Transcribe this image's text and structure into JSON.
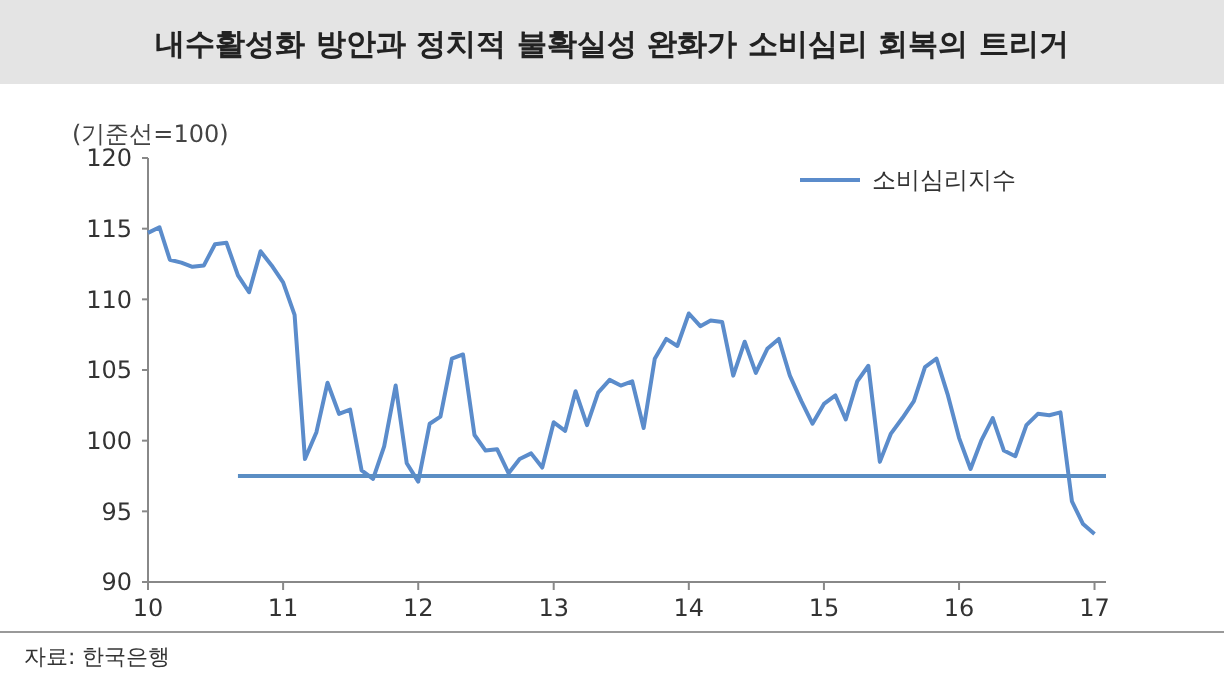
{
  "chart_data": {
    "type": "line",
    "title": "내수활성화 방안과 정치적 불확실성 완화가 소비심리 회복의 트리거",
    "ylabel": "(기준선=100)",
    "annotations": [
      "자료: 한국은행"
    ],
    "x": [
      "2010-01",
      "2010-02",
      "2010-03",
      "2010-04",
      "2010-05",
      "2010-06",
      "2010-07",
      "2010-08",
      "2010-09",
      "2010-10",
      "2010-11",
      "2010-12",
      "2011-01",
      "2011-02",
      "2011-03",
      "2011-04",
      "2011-05",
      "2011-06",
      "2011-07",
      "2011-08",
      "2011-09",
      "2011-10",
      "2011-11",
      "2011-12",
      "2012-01",
      "2012-02",
      "2012-03",
      "2012-04",
      "2012-05",
      "2012-06",
      "2012-07",
      "2012-08",
      "2012-09",
      "2012-10",
      "2012-11",
      "2012-12",
      "2013-01",
      "2013-02",
      "2013-03",
      "2013-04",
      "2013-05",
      "2013-06",
      "2013-07",
      "2013-08",
      "2013-09",
      "2013-10",
      "2013-11",
      "2013-12",
      "2014-01",
      "2014-02",
      "2014-03",
      "2014-04",
      "2014-05",
      "2014-06",
      "2014-07",
      "2014-08",
      "2014-09",
      "2014-10",
      "2014-11",
      "2014-12",
      "2015-01",
      "2015-02",
      "2015-03",
      "2015-04",
      "2015-05",
      "2015-06",
      "2015-07",
      "2015-08",
      "2015-09",
      "2015-10",
      "2015-11",
      "2015-12",
      "2016-01",
      "2016-02",
      "2016-03",
      "2016-04",
      "2016-05",
      "2016-06",
      "2016-07",
      "2016-08",
      "2016-09",
      "2016-10",
      "2016-11",
      "2016-12",
      "2017-01"
    ],
    "series": [
      {
        "name": "소비심리지수",
        "color": "#5b8ccb",
        "values": [
          114.7,
          115.1,
          112.8,
          112.6,
          112.3,
          112.4,
          113.9,
          114.0,
          111.7,
          110.5,
          113.4,
          112.4,
          111.2,
          108.9,
          98.7,
          100.6,
          104.1,
          101.9,
          102.2,
          97.9,
          97.3,
          99.6,
          103.9,
          98.4,
          97.1,
          101.2,
          101.7,
          105.8,
          106.1,
          100.4,
          99.3,
          99.4,
          97.7,
          98.7,
          99.1,
          98.1,
          101.3,
          100.7,
          103.5,
          101.1,
          103.4,
          104.3,
          103.9,
          104.2,
          100.9,
          105.8,
          107.2,
          106.7,
          109.0,
          108.1,
          108.5,
          108.4,
          104.6,
          107.0,
          104.8,
          106.5,
          107.2,
          104.6,
          102.8,
          101.2,
          102.6,
          103.2,
          101.5,
          104.2,
          105.3,
          98.5,
          100.5,
          101.6,
          102.8,
          105.2,
          105.8,
          103.3,
          100.2,
          98.0,
          100.0,
          101.6,
          99.3,
          98.9,
          101.1,
          101.9,
          101.8,
          102.0,
          95.7,
          94.1,
          93.4
        ]
      },
      {
        "type": "line",
        "color": "#5b8ec4",
        "x": [
          "2010-09",
          "2017-02"
        ],
        "values": [
          97.5,
          97.5
        ]
      }
    ],
    "xlim": [
      "2010-01",
      "2017-02"
    ],
    "xticks": [
      {
        "value": "2010-01",
        "label": "10"
      },
      {
        "value": "2011-01",
        "label": "11"
      },
      {
        "value": "2012-01",
        "label": "12"
      },
      {
        "value": "2013-01",
        "label": "13"
      },
      {
        "value": "2014-01",
        "label": "14"
      },
      {
        "value": "2015-01",
        "label": "15"
      },
      {
        "value": "2016-01",
        "label": "16"
      },
      {
        "value": "2017-01",
        "label": "17"
      }
    ],
    "ylim": [
      90,
      120
    ],
    "yticks": [
      90,
      95,
      100,
      105,
      110,
      115,
      120
    ],
    "grid": false,
    "legend": "top right",
    "marker": "none",
    "line_style": "solid"
  }
}
